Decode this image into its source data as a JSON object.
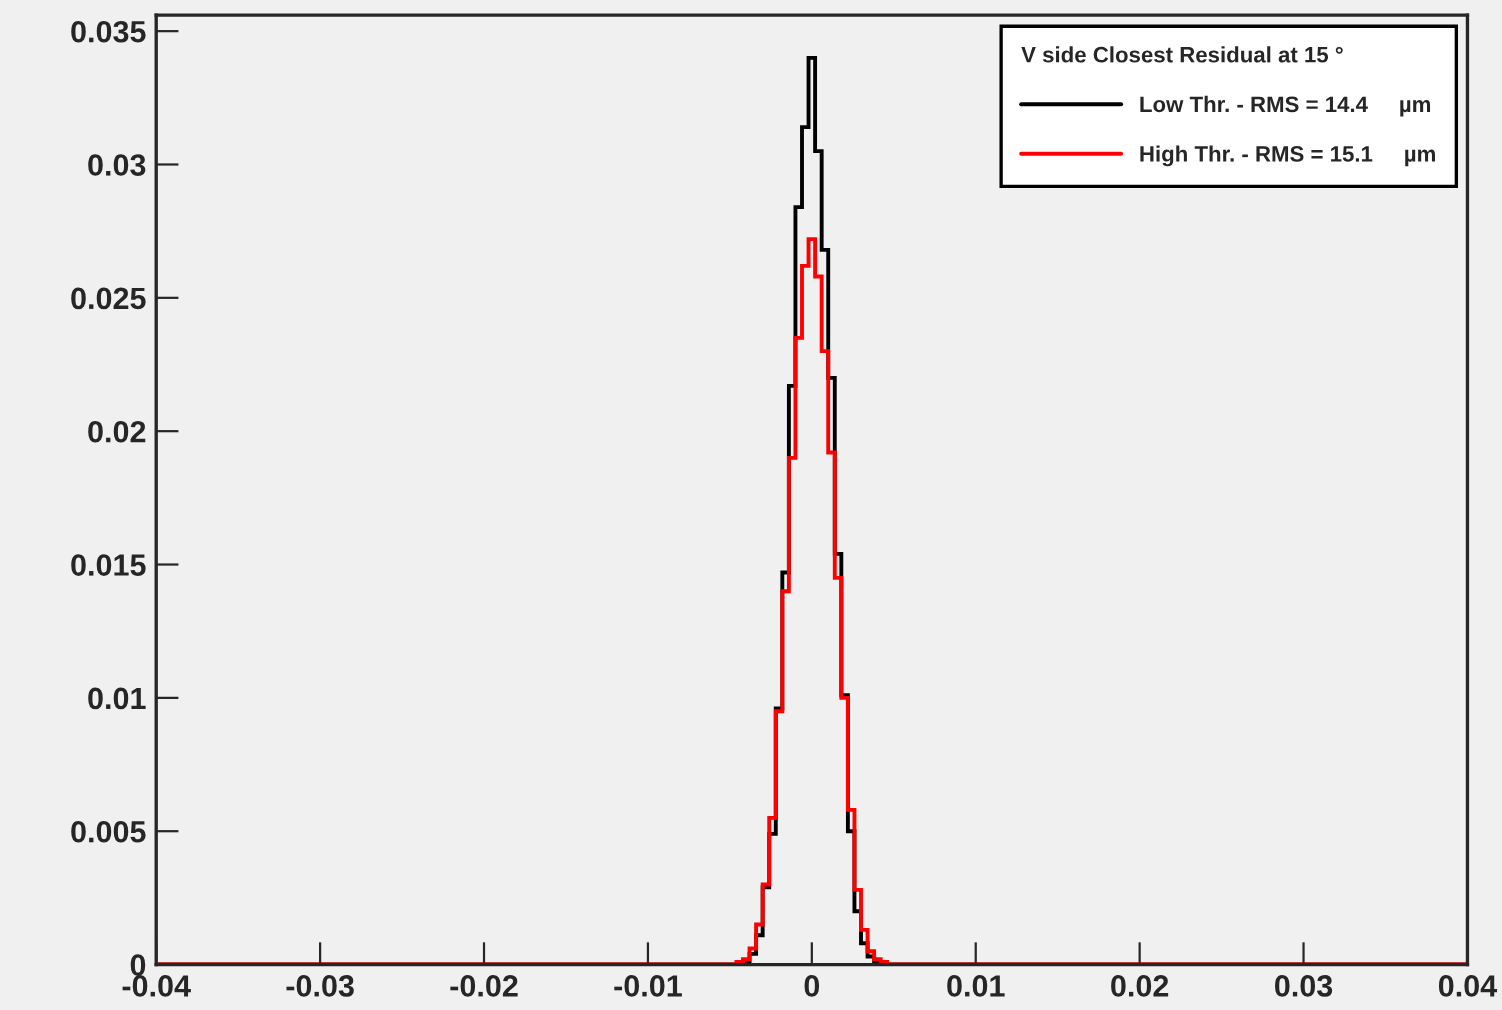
{
  "chart_data": {
    "type": "histogram",
    "legend_title": "V side Closest Residual at 15 °",
    "bins": [
      -0.04,
      -0.0062,
      -0.0058,
      -0.0054,
      -0.005,
      -0.0046,
      -0.0042,
      -0.0038,
      -0.0034,
      -0.003,
      -0.0026,
      -0.0022,
      -0.0018,
      -0.0014,
      -0.001,
      -0.0006,
      -0.0002,
      0.0002,
      0.0006,
      0.001,
      0.0014,
      0.0018,
      0.0022,
      0.0026,
      0.003,
      0.0034,
      0.0038,
      0.0042,
      0.0046,
      0.005,
      0.0054,
      0.0058,
      0.0062,
      0.04
    ],
    "series": [
      {
        "name": "Low Thr. - RMS = 14.4     µm",
        "color": "#000000",
        "values": [
          0,
          0,
          0,
          0,
          0,
          0,
          0.0001,
          0.0004,
          0.0011,
          0.0029,
          0.0049,
          0.0096,
          0.0147,
          0.0217,
          0.0284,
          0.0314,
          0.034,
          0.0305,
          0.0268,
          0.022,
          0.0154,
          0.0101,
          0.005,
          0.002,
          0.0008,
          0.0003,
          0.0001,
          0,
          0,
          0,
          0,
          0,
          0
        ]
      },
      {
        "name": "High Thr. - RMS = 15.1     µm",
        "color": "#ff0000",
        "values": [
          0,
          0,
          0,
          0,
          0,
          0.0001,
          0.0002,
          0.0006,
          0.0015,
          0.003,
          0.0055,
          0.0095,
          0.014,
          0.019,
          0.0235,
          0.0262,
          0.0272,
          0.0258,
          0.023,
          0.0192,
          0.0145,
          0.01,
          0.0058,
          0.0028,
          0.0013,
          0.0005,
          0.0002,
          0.0001,
          0,
          0,
          0,
          0,
          0
        ]
      }
    ],
    "xlim": [
      -0.04,
      0.04
    ],
    "ylim": [
      0,
      0.0356
    ],
    "xticks": [
      -0.04,
      -0.03,
      -0.02,
      -0.01,
      0,
      0.01,
      0.02,
      0.03,
      0.04
    ],
    "yticks": [
      0,
      0.005,
      0.01,
      0.015,
      0.02,
      0.025,
      0.03,
      0.035
    ],
    "grid": false,
    "legend": "top right"
  }
}
